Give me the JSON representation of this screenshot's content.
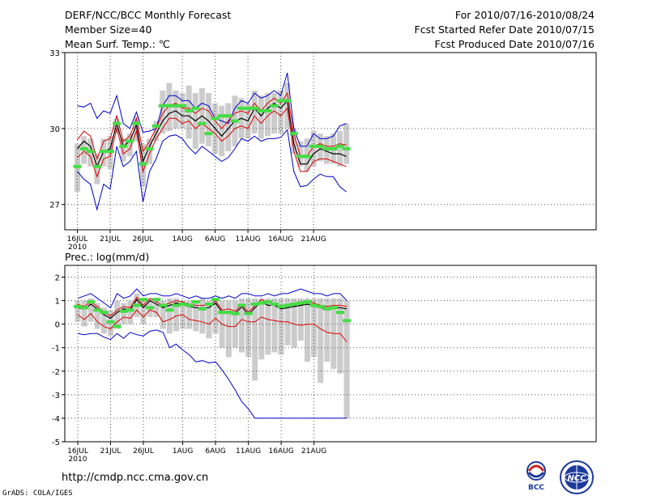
{
  "header": {
    "title": "DERF/NCC/BCC Monthly Forecast",
    "member_size": "Member Size=40",
    "variable": "Mean Surf. Temp.: ℃",
    "period": "For 2010/07/16-2010/08/24",
    "start_date": "Fcst Started Refer Date 2010/07/15",
    "produced_date": "Fcst Produced Date 2010/07/16"
  },
  "footer": {
    "url": "http://cmdp.ncc.cma.gov.cn",
    "credit": "GrADS: COLA/IGES",
    "logo_left_text": "BCC",
    "logo_right_text": "NCC"
  },
  "colors": {
    "envelope": "#0000cc",
    "spread": "#dd0000",
    "median": "#000000",
    "mean_marker": "#44dd44",
    "box": "#cccccc"
  },
  "chart_data": [
    {
      "type": "line",
      "title": "Mean Surf. Temp.: ℃",
      "ylim": [
        26,
        33
      ],
      "yticks": [
        27,
        30,
        33
      ],
      "x_tick_labels": [
        "16JUL",
        "21JUL",
        "26JUL",
        "1AUG",
        "6AUG",
        "11AUG",
        "16AUG",
        "21AUG"
      ],
      "x_year_label": "2010",
      "x_tick_days": [
        0,
        5,
        10,
        16,
        21,
        26,
        31,
        36
      ],
      "grid": true,
      "series": [
        {
          "name": "max",
          "values": [
            30.9,
            30.85,
            31.0,
            30.4,
            30.7,
            30.6,
            31.3,
            30.2,
            30.0,
            30.65,
            29.85,
            29.9,
            30.0,
            30.9,
            31.3,
            31.3,
            31.1,
            31.1,
            30.8,
            31.0,
            30.9,
            30.4,
            30.3,
            30.2,
            30.8,
            31.1,
            31.0,
            31.4,
            31.2,
            31.3,
            31.5,
            31.3,
            32.2,
            30.0,
            29.3,
            29.3,
            29.8,
            29.6,
            29.6,
            29.7,
            30.1,
            30.2
          ]
        },
        {
          "name": "upper",
          "values": [
            29.55,
            29.9,
            29.7,
            28.8,
            29.5,
            29.6,
            30.5,
            29.5,
            29.7,
            30.4,
            29.1,
            29.5,
            30.0,
            30.6,
            30.9,
            31.0,
            30.8,
            30.8,
            30.6,
            30.8,
            30.7,
            30.3,
            30.0,
            30.3,
            30.6,
            30.7,
            30.6,
            31.0,
            30.7,
            31.0,
            31.2,
            31.0,
            31.4,
            29.8,
            28.9,
            28.9,
            29.3,
            29.4,
            29.3,
            29.3,
            29.4,
            29.35
          ]
        },
        {
          "name": "median",
          "values": [
            29.2,
            29.5,
            29.3,
            28.5,
            29.1,
            29.2,
            30.2,
            29.3,
            29.5,
            30.15,
            28.7,
            29.3,
            29.8,
            30.3,
            30.6,
            30.7,
            30.5,
            30.5,
            30.3,
            30.5,
            30.3,
            30.0,
            29.7,
            30.0,
            30.3,
            30.4,
            30.3,
            30.8,
            30.5,
            30.8,
            31.0,
            30.8,
            31.1,
            29.4,
            28.6,
            28.6,
            29.0,
            29.2,
            29.1,
            29.0,
            29.0,
            28.9
          ]
        },
        {
          "name": "lower",
          "values": [
            28.85,
            29.1,
            28.9,
            28.1,
            28.8,
            28.9,
            30.0,
            29.0,
            29.2,
            29.9,
            28.3,
            29.0,
            29.6,
            30.0,
            30.4,
            30.4,
            30.2,
            30.3,
            30.0,
            30.2,
            30.0,
            29.8,
            29.5,
            29.7,
            30.0,
            30.1,
            30.0,
            30.5,
            30.2,
            30.5,
            30.7,
            30.5,
            30.8,
            29.1,
            28.3,
            28.3,
            28.7,
            28.8,
            28.8,
            28.7,
            28.6,
            28.5
          ]
        },
        {
          "name": "min",
          "values": [
            28.3,
            28.0,
            27.8,
            26.8,
            27.8,
            27.6,
            29.3,
            28.5,
            28.7,
            29.1,
            27.1,
            28.3,
            28.8,
            29.5,
            29.7,
            29.75,
            29.6,
            29.25,
            29.0,
            29.3,
            29.1,
            28.9,
            28.7,
            28.85,
            29.2,
            29.6,
            29.5,
            29.7,
            29.5,
            29.6,
            29.6,
            29.65,
            29.95,
            28.3,
            27.7,
            27.75,
            28.0,
            28.2,
            28.1,
            28.1,
            27.7,
            27.5
          ]
        },
        {
          "name": "ensemble mean",
          "values": [
            28.5,
            29.2,
            29.1,
            28.5,
            29.1,
            29.1,
            30.2,
            29.3,
            29.5,
            30.2,
            28.6,
            29.2,
            30.1,
            30.9,
            30.9,
            30.9,
            30.9,
            30.7,
            30.8,
            30.2,
            29.8,
            30.4,
            30.5,
            30.5,
            30.3,
            30.8,
            30.8,
            30.8,
            30.7,
            30.7,
            30.9,
            31.1,
            31.1,
            29.8,
            28.9,
            28.9,
            29.3,
            29.3,
            29.2,
            29.2,
            29.3,
            29.2
          ]
        },
        {
          "name": "box top",
          "values": [
            29.4,
            29.7,
            29.6,
            29.0,
            29.6,
            29.7,
            30.4,
            29.6,
            29.8,
            30.5,
            29.4,
            29.6,
            30.3,
            31.5,
            31.8,
            31.5,
            31.4,
            31.7,
            31.4,
            31.6,
            31.4,
            31.0,
            30.9,
            31.0,
            31.3,
            31.2,
            31.0,
            31.5,
            31.3,
            31.4,
            31.4,
            31.5,
            31.8,
            30.0,
            29.5,
            29.6,
            29.9,
            29.8,
            29.7,
            29.8,
            29.9,
            30.2
          ]
        },
        {
          "name": "box bottom",
          "values": [
            27.5,
            28.6,
            28.5,
            27.8,
            28.5,
            28.4,
            29.8,
            28.7,
            28.9,
            29.5,
            27.7,
            28.6,
            29.5,
            29.8,
            29.9,
            30.0,
            30.0,
            29.6,
            29.2,
            29.4,
            29.3,
            29.0,
            28.9,
            29.1,
            29.3,
            29.6,
            29.6,
            29.8,
            29.6,
            29.7,
            29.8,
            29.8,
            30.0,
            29.0,
            28.5,
            28.3,
            28.5,
            28.7,
            28.6,
            28.6,
            28.5,
            28.6
          ]
        }
      ]
    },
    {
      "type": "line",
      "title": "Prec.: log(mm/d)",
      "ylim": [
        -5,
        2.5
      ],
      "yticks": [
        -5,
        -4,
        -3,
        -2,
        -1,
        0,
        1,
        2
      ],
      "x_tick_labels": [
        "16JUL",
        "21JUL",
        "26JUL",
        "1AUG",
        "6AUG",
        "11AUG",
        "16AUG",
        "21AUG"
      ],
      "x_year_label": "2010",
      "x_tick_days": [
        0,
        5,
        10,
        16,
        21,
        26,
        31,
        36
      ],
      "grid": true,
      "series": [
        {
          "name": "max",
          "values": [
            1.1,
            1.2,
            1.3,
            1.1,
            0.9,
            0.7,
            1.3,
            1.1,
            1.2,
            1.5,
            1.2,
            1.3,
            1.3,
            1.2,
            1.2,
            1.3,
            1.2,
            1.1,
            1.2,
            1.1,
            1.1,
            1.2,
            1.1,
            1.2,
            1.1,
            1.3,
            1.3,
            1.2,
            1.2,
            1.3,
            1.2,
            1.3,
            1.3,
            1.4,
            1.5,
            1.4,
            1.3,
            1.3,
            1.2,
            1.3,
            1.3,
            1.0
          ]
        },
        {
          "name": "upper",
          "values": [
            0.85,
            0.75,
            0.95,
            0.75,
            0.5,
            0.35,
            0.6,
            0.75,
            0.7,
            1.15,
            0.8,
            1.1,
            0.95,
            0.8,
            0.9,
            1.0,
            0.95,
            0.85,
            0.8,
            0.8,
            0.8,
            1.0,
            0.6,
            0.65,
            0.55,
            0.85,
            0.5,
            0.8,
            1.05,
            0.9,
            0.9,
            0.75,
            0.8,
            0.85,
            0.9,
            0.95,
            0.9,
            0.8,
            0.75,
            0.8,
            0.8,
            0.75
          ]
        },
        {
          "name": "median",
          "values": [
            0.7,
            0.65,
            0.85,
            0.65,
            0.4,
            0.25,
            0.5,
            0.65,
            0.6,
            1.05,
            0.7,
            1.0,
            0.85,
            0.7,
            0.8,
            0.9,
            0.85,
            0.75,
            0.7,
            0.7,
            0.7,
            0.9,
            0.5,
            0.55,
            0.45,
            0.75,
            0.4,
            0.7,
            0.95,
            0.8,
            0.8,
            0.65,
            0.7,
            0.75,
            0.8,
            0.85,
            0.8,
            0.7,
            0.65,
            0.7,
            0.7,
            0.65
          ]
        },
        {
          "name": "lower",
          "values": [
            0.4,
            0.2,
            0.45,
            0.1,
            -0.1,
            -0.2,
            0.1,
            0.3,
            0.25,
            0.6,
            0.3,
            0.6,
            0.5,
            0.1,
            0.2,
            0.35,
            0.4,
            0.2,
            0.15,
            0.1,
            0.0,
            0.25,
            0.0,
            -0.1,
            -0.1,
            0.2,
            0.1,
            0.1,
            0.3,
            0.2,
            0.15,
            0.1,
            0.1,
            0.0,
            -0.05,
            0.0,
            0.0,
            -0.2,
            -0.35,
            -0.4,
            -0.4,
            -0.75
          ]
        },
        {
          "name": "min",
          "values": [
            -0.4,
            -0.45,
            -0.4,
            -0.4,
            -0.55,
            -0.65,
            -0.4,
            -0.6,
            -0.35,
            -0.45,
            -0.5,
            -0.3,
            -0.25,
            -0.35,
            -1.0,
            -0.85,
            -1.1,
            -1.3,
            -1.6,
            -1.55,
            -1.65,
            -1.6,
            -1.95,
            -2.35,
            -2.8,
            -3.3,
            -3.6,
            -4.0,
            -4.0,
            -4.0,
            -4.0,
            -4.0,
            -4.0,
            -4.0,
            -4.0,
            -4.0,
            -4.0,
            -4.0,
            -4.0,
            -4.0,
            -4.0,
            -4.0
          ]
        },
        {
          "name": "ensemble mean",
          "values": [
            0.75,
            0.7,
            0.95,
            0.6,
            0.5,
            0.1,
            -0.1,
            0.55,
            0.6,
            0.8,
            1.05,
            0.7,
            1.05,
            0.8,
            0.6,
            0.8,
            0.85,
            0.8,
            0.95,
            0.65,
            0.85,
            1.05,
            0.5,
            0.5,
            0.45,
            0.8,
            0.45,
            0.85,
            0.9,
            0.95,
            0.85,
            0.75,
            0.8,
            0.85,
            0.9,
            0.95,
            0.8,
            0.75,
            0.65,
            0.7,
            0.5,
            0.15
          ]
        },
        {
          "name": "box top",
          "values": [
            1.0,
            1.0,
            1.1,
            0.9,
            0.7,
            0.6,
            1.0,
            0.9,
            1.0,
            1.3,
            1.1,
            1.1,
            1.1,
            1.0,
            1.1,
            1.1,
            1.0,
            1.0,
            1.0,
            1.1,
            1.0,
            1.1,
            1.0,
            1.0,
            1.0,
            1.1,
            1.1,
            1.1,
            1.1,
            1.1,
            1.1,
            1.1,
            1.1,
            1.1,
            1.1,
            1.1,
            1.1,
            1.1,
            1.1,
            1.1,
            1.1,
            1.0
          ]
        },
        {
          "name": "box bottom",
          "values": [
            0.1,
            -0.1,
            0.1,
            -0.2,
            -0.4,
            -0.5,
            -0.2,
            0.0,
            0.0,
            0.3,
            0.0,
            0.3,
            0.3,
            -0.2,
            -0.4,
            -0.3,
            -0.2,
            -0.2,
            -0.3,
            -0.4,
            -0.6,
            -0.4,
            -1.0,
            -1.4,
            -1.0,
            -1.2,
            -1.4,
            -2.4,
            -1.5,
            -1.3,
            -1.2,
            -1.3,
            -0.9,
            -1.0,
            -0.7,
            -1.6,
            -1.4,
            -2.5,
            -1.6,
            -1.9,
            -2.1,
            -4.0
          ]
        }
      ]
    }
  ]
}
